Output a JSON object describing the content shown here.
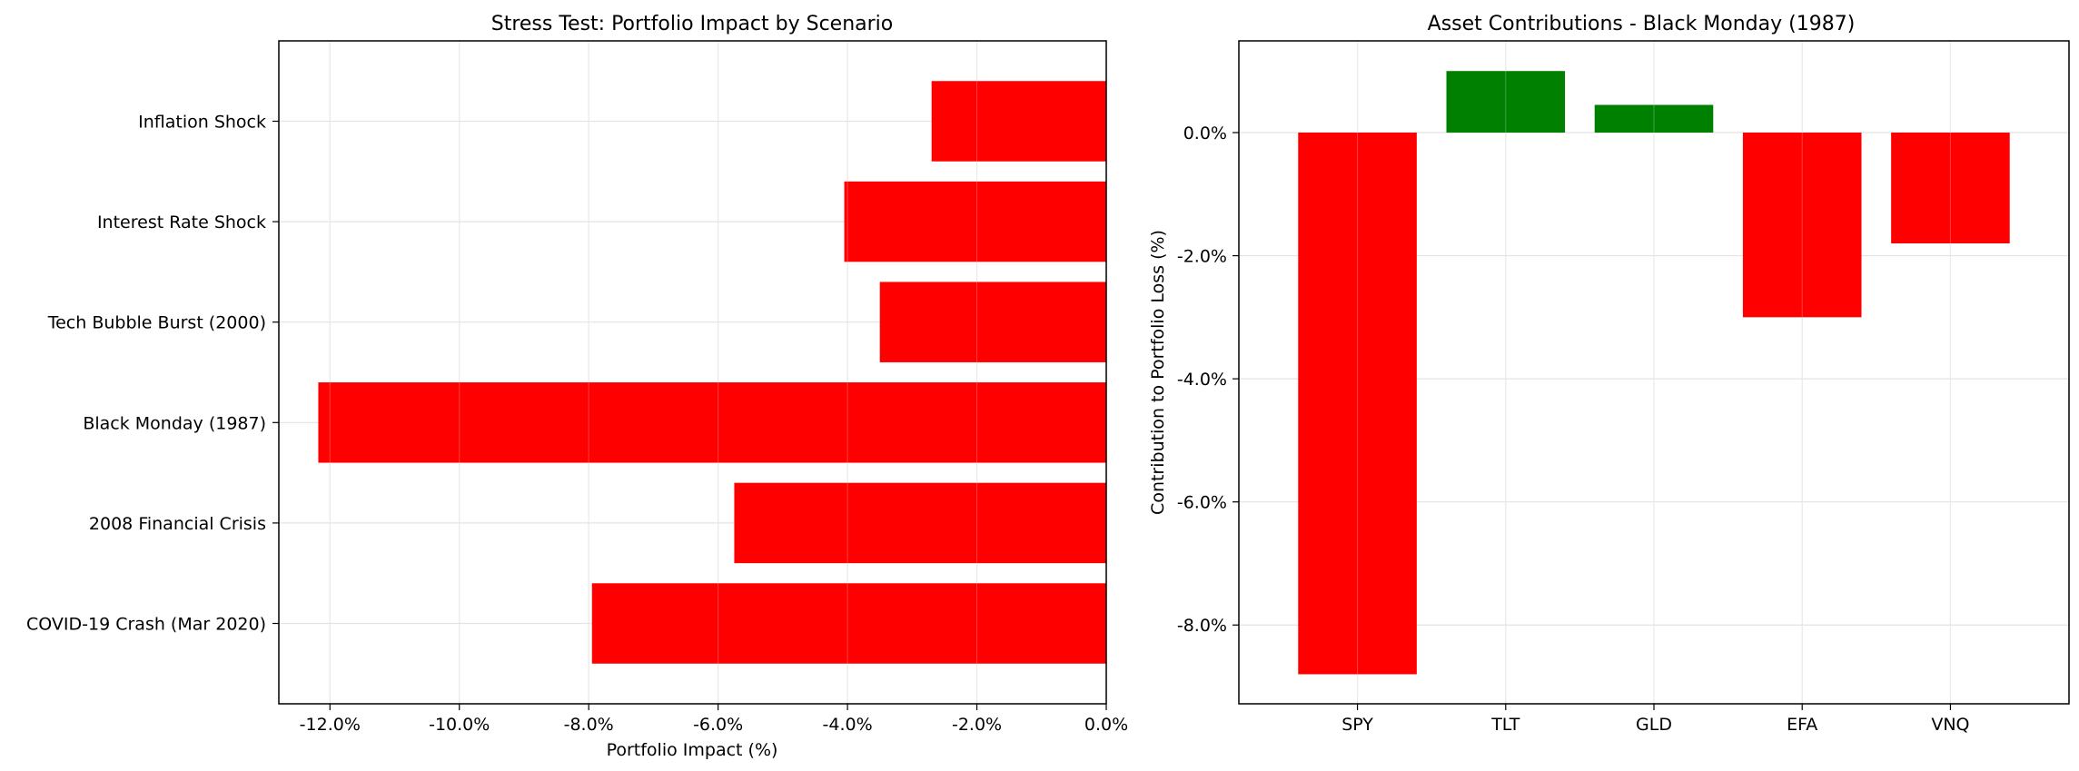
{
  "chart_data": [
    {
      "type": "bar",
      "orientation": "horizontal",
      "title": "Stress Test: Portfolio Impact by Scenario",
      "xlabel": "Portfolio Impact (%)",
      "ylabel": "",
      "categories": [
        "COVID-19 Crash (Mar 2020)",
        "2008 Financial Crisis",
        "Black Monday (1987)",
        "Tech Bubble Burst (2000)",
        "Interest Rate Shock",
        "Inflation Shock"
      ],
      "values": [
        -7.95,
        -5.75,
        -12.18,
        -3.5,
        -4.05,
        -2.7
      ],
      "xlim": [
        -12.79,
        0.0
      ],
      "xticks": [
        -12.0,
        -10.0,
        -8.0,
        -6.0,
        -4.0,
        -2.0,
        0.0
      ],
      "xtick_labels": [
        "-12.0%",
        "-10.0%",
        "-8.0%",
        "-6.0%",
        "-4.0%",
        "-2.0%",
        "0.0%"
      ],
      "grid": true,
      "color_negative": "#ff0000",
      "color_positive": "#008000"
    },
    {
      "type": "bar",
      "orientation": "vertical",
      "title": "Asset Contributions - Black Monday (1987)",
      "xlabel": "",
      "ylabel": "Contribution to Portfolio Loss (%)",
      "categories": [
        "SPY",
        "TLT",
        "GLD",
        "EFA",
        "VNQ"
      ],
      "values": [
        -8.8,
        1.0,
        0.45,
        -3.0,
        -1.8
      ],
      "ylim": [
        -9.28,
        1.49
      ],
      "yticks": [
        0.0,
        -2.0,
        -4.0,
        -6.0,
        -8.0
      ],
      "ytick_labels": [
        "0.0%",
        "-2.0%",
        "-4.0%",
        "-6.0%",
        "-8.0%"
      ],
      "grid": true,
      "color_negative": "#ff0000",
      "color_positive": "#008000"
    }
  ]
}
